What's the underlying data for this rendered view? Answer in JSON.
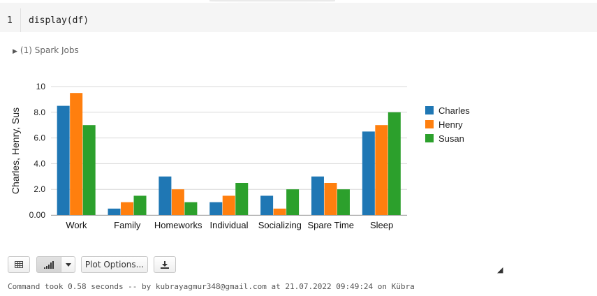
{
  "cell": {
    "line_number": "1",
    "code": "display(df)"
  },
  "spark_jobs": {
    "label": "(1) Spark Jobs"
  },
  "chart_data": {
    "type": "bar",
    "categories": [
      "Work",
      "Family",
      "Homeworks",
      "Individual",
      "Socializing",
      "Spare Time",
      "Sleep"
    ],
    "series": [
      {
        "name": "Charles",
        "color": "#1f77b4",
        "values": [
          8.5,
          0.5,
          3.0,
          1.0,
          1.5,
          3.0,
          6.5
        ]
      },
      {
        "name": "Henry",
        "color": "#ff7f0e",
        "values": [
          9.5,
          1.0,
          2.0,
          1.5,
          0.5,
          2.5,
          7.0
        ]
      },
      {
        "name": "Susan",
        "color": "#2ca02c",
        "values": [
          7.0,
          1.5,
          1.0,
          2.5,
          2.0,
          2.0,
          8.0
        ]
      }
    ],
    "ylabel": "Charles, Henry, Sus",
    "xlabel": "",
    "ylim": [
      0,
      10
    ],
    "yticks": [
      "0.00",
      "2.0",
      "4.0",
      "6.0",
      "8.0",
      "10"
    ],
    "grid": true,
    "legend": "right"
  },
  "toolbar": {
    "table_icon": "table-icon",
    "chart_icon": "bar-chart-icon",
    "dropdown_icon": "caret-down-icon",
    "plot_options_label": "Plot Options...",
    "download_icon": "download-icon"
  },
  "status": {
    "text": "Command took 0.58 seconds -- by kubrayagmur348@gmail.com at 21.07.2022 09:49:24 on Kübra"
  }
}
